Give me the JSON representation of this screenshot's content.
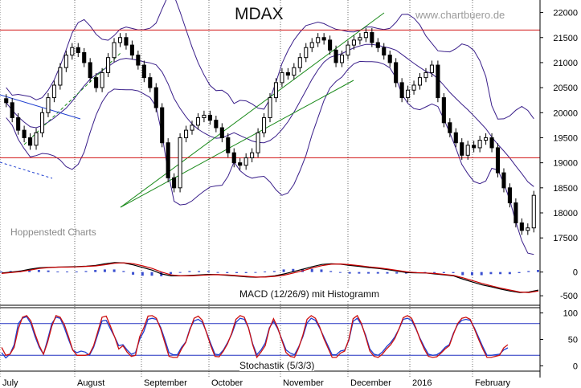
{
  "chart_data": [
    {
      "type": "candlestick",
      "title": "MDAX",
      "source": "Hoppenstedt Charts",
      "watermark": "www.chartbuero.de",
      "x_tick_labels": [
        "July",
        "August",
        "September",
        "October",
        "November",
        "December",
        "2016",
        "February"
      ],
      "y_tick_labels": [
        "22000",
        "21500",
        "21000",
        "20500",
        "20000",
        "19500",
        "19000",
        "18500",
        "18000",
        "17500"
      ],
      "ylim": [
        17150,
        22250
      ],
      "horizontal_lines": [
        21650,
        19100
      ],
      "closes": [
        20200,
        19900,
        19650,
        19500,
        19350,
        19600,
        20000,
        20300,
        20550,
        20900,
        21150,
        21300,
        21200,
        21000,
        20700,
        20500,
        20800,
        21100,
        21400,
        21500,
        21350,
        21150,
        20950,
        20700,
        20500,
        20100,
        19400,
        18700,
        18500,
        19500,
        19650,
        19750,
        19900,
        19950,
        19850,
        19700,
        19500,
        19200,
        19000,
        18950,
        19100,
        19200,
        19600,
        19900,
        20300,
        20600,
        20800,
        20750,
        20900,
        21100,
        21300,
        21400,
        21500,
        21450,
        21250,
        21000,
        21150,
        21350,
        21450,
        21500,
        21600,
        21400,
        21300,
        21150,
        21000,
        20600,
        20300,
        20450,
        20550,
        20700,
        20800,
        20950,
        20300,
        19800,
        19600,
        19400,
        19150,
        19350,
        19300,
        19450,
        19500,
        19300,
        18800,
        18500,
        18200,
        17800,
        17650,
        17700,
        18350
      ]
    },
    {
      "type": "line",
      "label": "MACD (12/26/9) mit Histogramm",
      "y_tick_labels": [
        "0",
        "-500"
      ],
      "ylim": [
        -700,
        350
      ],
      "series": [
        {
          "color": "#000000",
          "values": [
            -20,
            0,
            20,
            60,
            90,
            100,
            105,
            110,
            115,
            125,
            140,
            175,
            200,
            190,
            150,
            95,
            40,
            -40,
            -80,
            -80,
            -70,
            -60,
            -50,
            -55,
            -70,
            -85,
            -100,
            -110,
            -100,
            -80,
            -40,
            10,
            60,
            115,
            160,
            175,
            165,
            140,
            120,
            95,
            75,
            50,
            20,
            -10,
            -15,
            -20,
            -40,
            -60,
            -80,
            -150,
            -210,
            -270,
            -310,
            -360,
            -400,
            -430,
            -420,
            -380
          ]
        },
        {
          "color": "#cc0000",
          "values": [
            -30,
            -10,
            10,
            40,
            75,
            95,
            105,
            105,
            110,
            120,
            130,
            155,
            185,
            195,
            175,
            130,
            75,
            0,
            -60,
            -80,
            -80,
            -70,
            -60,
            -55,
            -60,
            -75,
            -90,
            -105,
            -105,
            -90,
            -65,
            -20,
            30,
            85,
            135,
            165,
            170,
            155,
            135,
            110,
            90,
            65,
            35,
            5,
            -10,
            -20,
            -30,
            -50,
            -70,
            -120,
            -180,
            -240,
            -290,
            -340,
            -380,
            -420,
            -430,
            -400
          ]
        }
      ],
      "histogram": [
        5,
        10,
        15,
        20,
        20,
        15,
        5,
        5,
        5,
        10,
        20,
        25,
        25,
        10,
        -25,
        -35,
        -35,
        -40,
        -20,
        0,
        10,
        10,
        10,
        0,
        -10,
        -10,
        -10,
        -5,
        5,
        10,
        25,
        30,
        30,
        30,
        25,
        10,
        -5,
        -15,
        -15,
        -15,
        -15,
        -15,
        -15,
        -15,
        -5,
        0,
        -10,
        -10,
        -10,
        -30,
        -30,
        -30,
        -20,
        -20,
        -20,
        -10,
        10,
        20
      ]
    },
    {
      "type": "line",
      "label": "Stochastik (5/3/3)",
      "y_tick_labels": [
        "100",
        "50",
        "0"
      ],
      "ylim": [
        -10,
        110
      ],
      "reference_lines": [
        80,
        20
      ],
      "series": [
        {
          "color": "#1f3fd0",
          "values": [
            25,
            15,
            22,
            40,
            80,
            90,
            93,
            80,
            55,
            35,
            22,
            50,
            80,
            92,
            90,
            72,
            50,
            30,
            25,
            28,
            26,
            20,
            35,
            60,
            85,
            86,
            70,
            55,
            38,
            40,
            30,
            22,
            25,
            50,
            65,
            88,
            90,
            88,
            73,
            50,
            25,
            21,
            21,
            35,
            45,
            70,
            85,
            88,
            82,
            63,
            42,
            22,
            21,
            30,
            44,
            60,
            82,
            90,
            88,
            72,
            42,
            21,
            30,
            43,
            72,
            84,
            70,
            50,
            30,
            24,
            21,
            36,
            55,
            81,
            90,
            86,
            72,
            55,
            38,
            21,
            21,
            28,
            30,
            48,
            84,
            90,
            78,
            58,
            32,
            22,
            20,
            26,
            36,
            44,
            55,
            70,
            88,
            90,
            86,
            70,
            52,
            36,
            22,
            20,
            21,
            26,
            35,
            40,
            62,
            78,
            86,
            88,
            86,
            72,
            54,
            36,
            20,
            20,
            21,
            22,
            30,
            34
          ]
        },
        {
          "color": "#cc1010",
          "values": [
            35,
            20,
            22,
            35,
            70,
            92,
            95,
            85,
            60,
            38,
            22,
            45,
            75,
            95,
            92,
            78,
            55,
            30,
            20,
            20,
            20,
            22,
            38,
            65,
            92,
            94,
            75,
            55,
            32,
            38,
            26,
            18,
            20,
            55,
            72,
            94,
            95,
            90,
            70,
            44,
            18,
            16,
            16,
            32,
            44,
            68,
            90,
            94,
            86,
            62,
            38,
            18,
            17,
            28,
            42,
            62,
            88,
            95,
            92,
            72,
            40,
            16,
            26,
            38,
            70,
            89,
            72,
            48,
            25,
            18,
            16,
            34,
            58,
            88,
            95,
            90,
            74,
            52,
            34,
            16,
            16,
            24,
            28,
            50,
            89,
            95,
            80,
            55,
            28,
            18,
            16,
            22,
            32,
            40,
            52,
            70,
            91,
            95,
            90,
            72,
            50,
            32,
            18,
            16,
            17,
            24,
            32,
            38,
            60,
            80,
            90,
            92,
            88,
            70,
            50,
            32,
            16,
            16,
            18,
            20,
            34,
            40
          ]
        }
      ]
    }
  ]
}
